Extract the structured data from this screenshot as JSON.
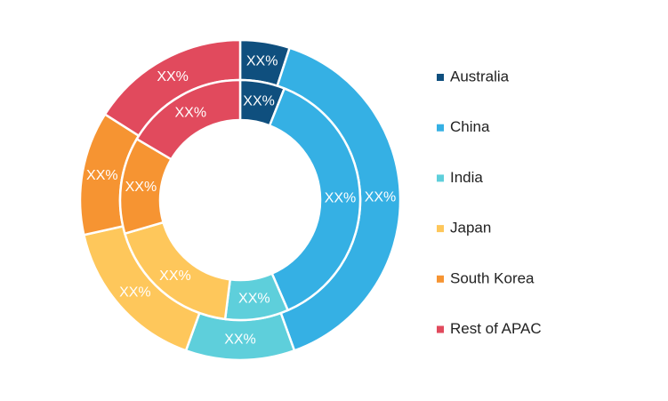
{
  "chart_data": {
    "type": "donut",
    "categories": [
      "Australia",
      "China",
      "India",
      "Japan",
      "South Korea",
      "Rest of APAC"
    ],
    "colors": [
      "#0f4f7e",
      "#35b0e4",
      "#5ecfdb",
      "#fec75b",
      "#f69432",
      "#e14a5d"
    ],
    "series": [
      {
        "values": [
          5,
          39.5,
          11,
          16,
          12.5,
          16
        ],
        "value_labels": [
          "XX%",
          "XX%",
          "XX%",
          "XX%",
          "XX%",
          "XX%"
        ]
      },
      {
        "values": [
          6,
          37.5,
          8.5,
          18.5,
          13,
          16.5
        ],
        "value_labels": [
          "XX%",
          "XX%",
          "XX%",
          "XX%",
          "XX%",
          "XX%"
        ]
      }
    ],
    "legend": "right"
  }
}
